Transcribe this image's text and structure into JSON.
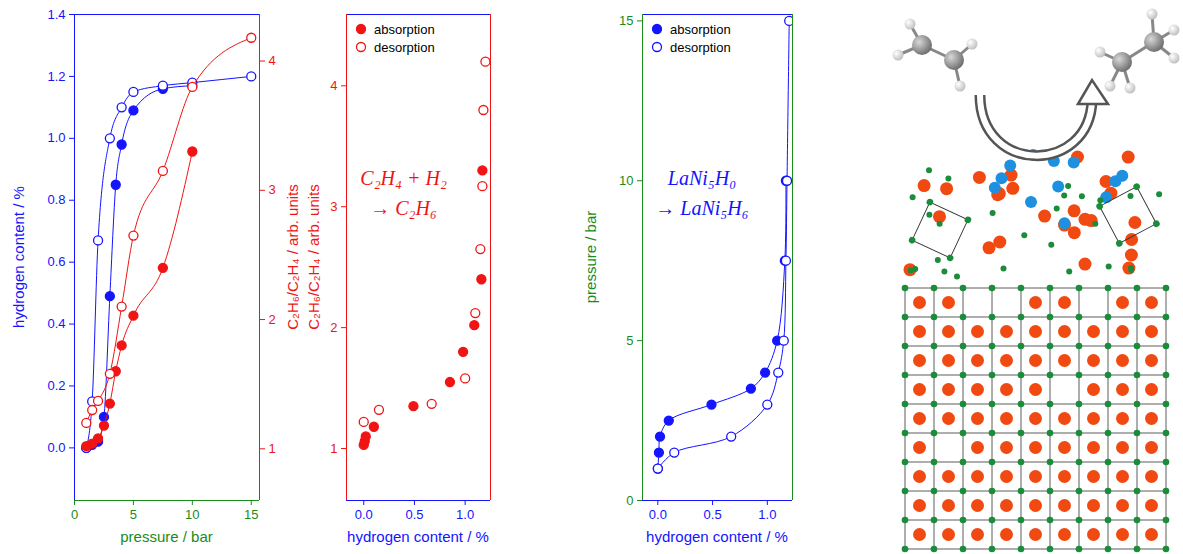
{
  "chart_data": [
    {
      "type": "line",
      "xlabel": "pressure / bar",
      "ylabel": "hydrogen content / %",
      "y2label": "C₂H₆/C₂H₄ / arb. units",
      "xlim": [
        0,
        15.7
      ],
      "xticks": [
        0,
        5,
        10,
        15
      ],
      "ylim": [
        -0.17,
        1.4
      ],
      "yticks": [
        {
          "value": 0,
          "label": "0.0"
        },
        0.2,
        0.4,
        0.6,
        0.8,
        {
          "value": 1,
          "label": "1.0"
        },
        1.2,
        1.4
      ],
      "y2lim": [
        0.6,
        4.36
      ],
      "y2ticks": [
        1,
        2,
        3,
        4
      ],
      "series": [
        {
          "color": "#1414ff",
          "marker": "circle",
          "x": [
            1,
            1.5,
            2,
            2.5,
            3,
            3.5,
            4,
            5,
            7.5,
            10
          ],
          "values": [
            0,
            0.01,
            0.02,
            0.1,
            0.49,
            0.85,
            0.98,
            1.09,
            1.16,
            1.17
          ]
        },
        {
          "color": "#1414ff",
          "marker": "open_circle",
          "x": [
            1,
            1.5,
            2,
            3,
            4,
            5,
            7.5,
            10,
            15
          ],
          "values": [
            0,
            0.15,
            0.67,
            1.0,
            1.1,
            1.15,
            1.17,
            1.18,
            1.2
          ]
        },
        {
          "color": "#f01414",
          "marker": "circle",
          "axis": "y2",
          "x": [
            1,
            1.5,
            2,
            2.5,
            3,
            3.5,
            4,
            5,
            7.5,
            10
          ],
          "values": [
            1.02,
            1.04,
            1.08,
            1.18,
            1.35,
            1.6,
            1.8,
            2.03,
            2.4,
            3.3
          ]
        },
        {
          "color": "#f01414",
          "marker": "open_circle",
          "axis": "y2",
          "x": [
            1,
            1.5,
            2,
            3,
            4,
            5,
            7.5,
            10,
            15
          ],
          "values": [
            1.2,
            1.3,
            1.37,
            1.58,
            2.1,
            2.65,
            3.15,
            3.8,
            4.18
          ]
        }
      ]
    },
    {
      "type": "scatter",
      "xlabel": "hydrogen content / %",
      "ylabel": "C₂H₆/C₂H₄ / arb. units",
      "xlim": [
        -0.17,
        1.25
      ],
      "xticks": [
        {
          "value": 0,
          "label": "0.0"
        },
        0.5,
        {
          "value": 1,
          "label": "1.0"
        }
      ],
      "ylim": [
        0.57,
        4.59
      ],
      "yticks": [
        1,
        2,
        3,
        4
      ],
      "legend": "top-left",
      "annotation": [
        "C₂H₄ + H₂",
        "→ C₂H₆"
      ],
      "series": [
        {
          "name": "absorption",
          "color": "#f01414",
          "marker": "circle",
          "x": [
            0,
            0.01,
            0.02,
            0.1,
            0.49,
            0.85,
            0.98,
            1.09,
            1.16,
            1.17
          ],
          "values": [
            1.03,
            1.06,
            1.1,
            1.18,
            1.35,
            1.55,
            1.8,
            2.02,
            2.4,
            3.3
          ]
        },
        {
          "name": "desorption",
          "color": "#f01414",
          "marker": "open_circle",
          "x": [
            0,
            0.15,
            0.67,
            1.0,
            1.1,
            1.15,
            1.17,
            1.18,
            1.2
          ],
          "values": [
            1.22,
            1.32,
            1.37,
            1.58,
            2.12,
            2.65,
            3.17,
            3.8,
            4.2
          ]
        }
      ]
    },
    {
      "type": "line",
      "xlabel": "hydrogen content / %",
      "ylabel": "pressure / bar",
      "xlim": [
        -0.14,
        1.23
      ],
      "xticks": [
        {
          "value": 0,
          "label": "0.0"
        },
        0.5,
        {
          "value": 1,
          "label": "1.0"
        }
      ],
      "ylim": [
        0,
        15.2
      ],
      "yticks": [
        0,
        5,
        10,
        15
      ],
      "legend": "top-left",
      "annotation": [
        "LaNi₅H₀",
        "→ LaNi₅H₆"
      ],
      "series": [
        {
          "name": "absorption",
          "color": "#1414ff",
          "marker": "circle",
          "x": [
            0,
            0.01,
            0.02,
            0.1,
            0.49,
            0.85,
            0.98,
            1.09,
            1.16,
            1.17
          ],
          "values": [
            1,
            1.5,
            2,
            2.5,
            3,
            3.5,
            4,
            5,
            7.5,
            10
          ]
        },
        {
          "name": "desorption",
          "color": "#1414ff",
          "marker": "open_circle",
          "x": [
            0,
            0.15,
            0.67,
            1.0,
            1.1,
            1.15,
            1.17,
            1.18,
            1.2
          ],
          "values": [
            1,
            1.5,
            2,
            3,
            4,
            5,
            7.5,
            10,
            15
          ]
        }
      ]
    }
  ]
}
